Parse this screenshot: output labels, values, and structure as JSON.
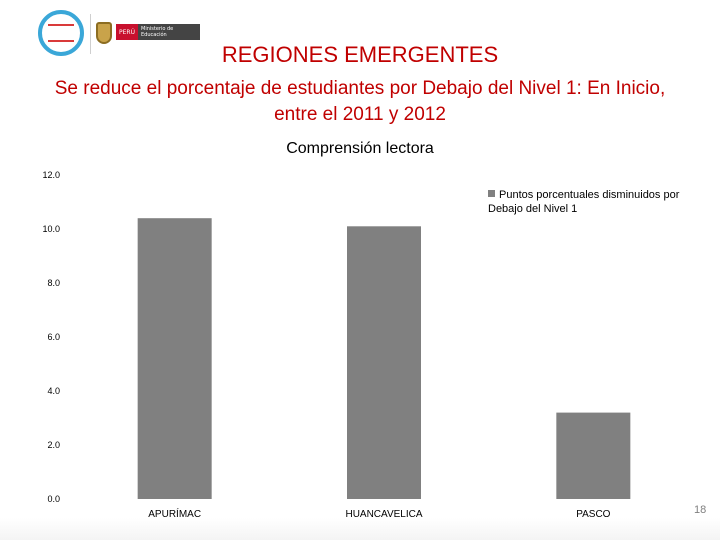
{
  "header": {
    "ministry_label": "Ministerio de Educación",
    "country_label": "PERÚ"
  },
  "titles": {
    "main": "REGIONES EMERGENTES",
    "subtitle": "Se reduce el porcentaje de estudiantes por Debajo del Nivel 1: En Inicio, entre el 2011 y 2012"
  },
  "chart_data": {
    "type": "bar",
    "title": "Comprensión lectora",
    "categories": [
      "APURÍMAC",
      "HUANCAVELICA",
      "PASCO"
    ],
    "series": [
      {
        "name": "Puntos porcentuales disminuidos por Debajo del Nivel 1",
        "values": [
          10.4,
          10.1,
          3.2
        ],
        "color": "#808080"
      }
    ],
    "ylim": [
      0,
      12
    ],
    "yticks": [
      "0.0",
      "2.0",
      "4.0",
      "6.0",
      "8.0",
      "10.0",
      "12.0"
    ],
    "legend_position": "top-right",
    "grid": false
  },
  "slide": {
    "page_number": "18"
  }
}
